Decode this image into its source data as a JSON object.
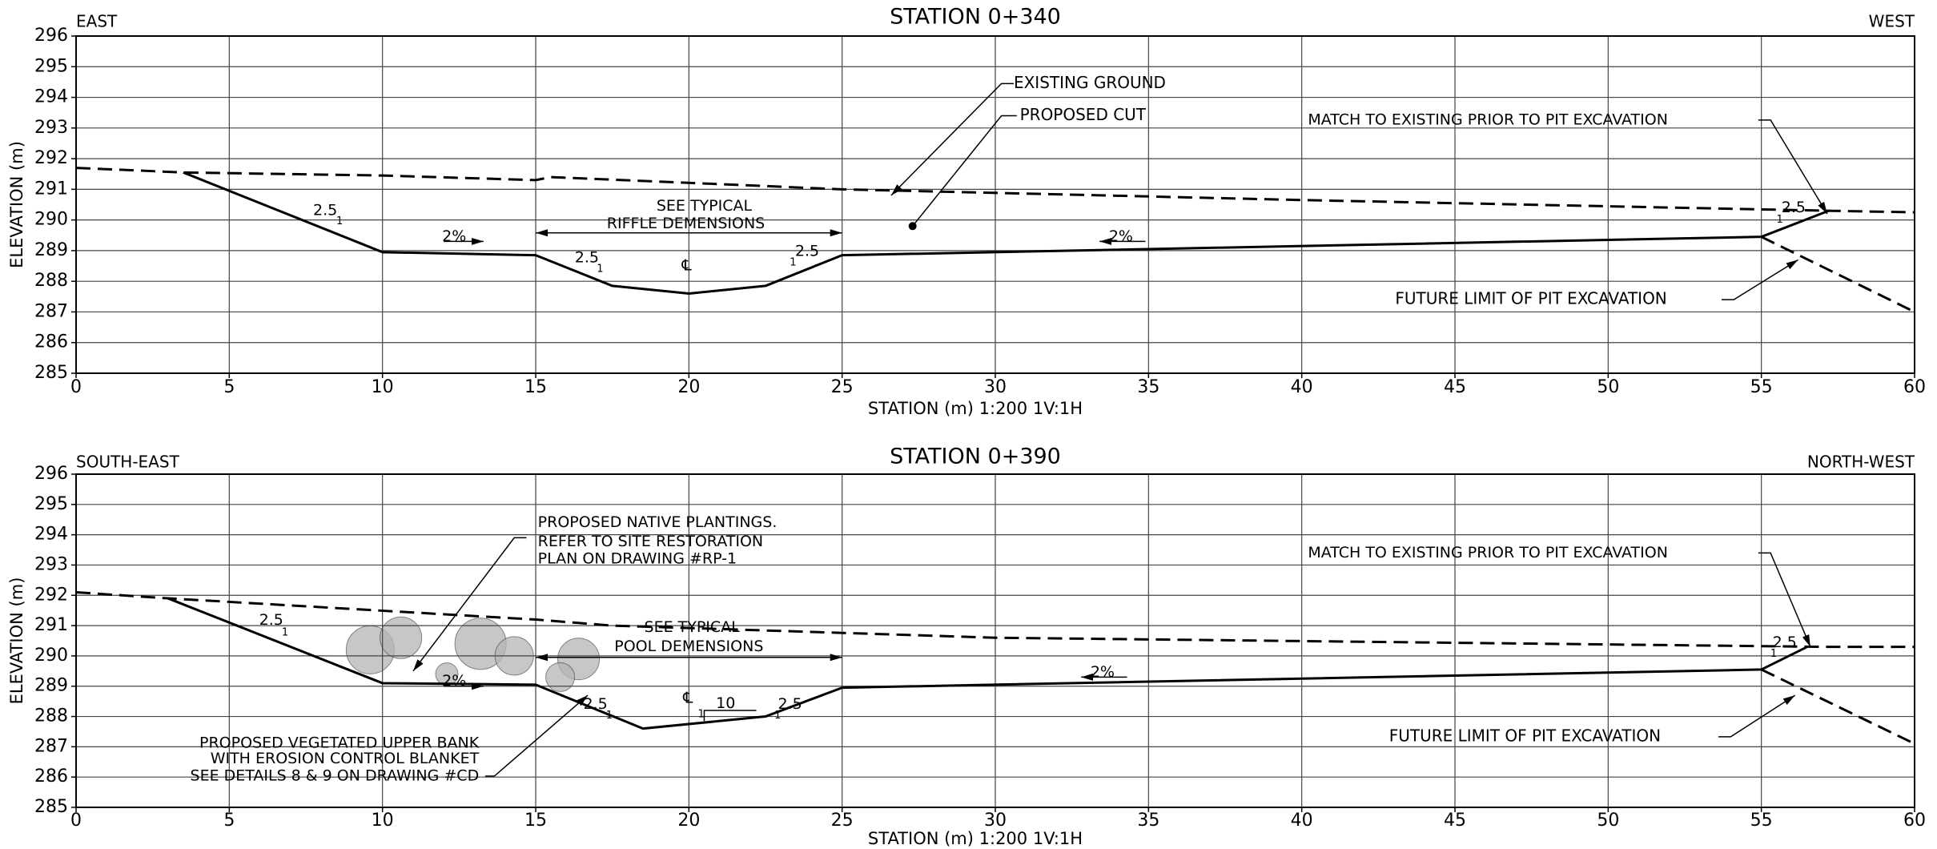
{
  "chart_data": [
    {
      "type": "line",
      "title": "STATION 0+340",
      "left_label": "EAST",
      "right_label": "WEST",
      "x_label": "STATION (m) 1:200 1V:1H",
      "y_label": "ELEVATION (m)",
      "xlim": [
        0,
        60
      ],
      "ylim": [
        285,
        296
      ],
      "xticks": [
        0,
        5,
        10,
        15,
        20,
        25,
        30,
        35,
        40,
        45,
        50,
        55,
        60
      ],
      "yticks": [
        285,
        286,
        287,
        288,
        289,
        290,
        291,
        292,
        293,
        294,
        295,
        296
      ],
      "grid": true,
      "series": [
        {
          "name": "EXISTING GROUND",
          "color": "#000000",
          "dashed": true,
          "x": [
            0,
            3.5,
            10,
            15,
            15.5,
            25,
            40,
            57.2,
            60
          ],
          "values": [
            291.7,
            291.55,
            291.45,
            291.3,
            291.4,
            291.0,
            290.65,
            290.3,
            290.25
          ]
        },
        {
          "name": "PROPOSED CUT",
          "color": "#000000",
          "dashed": false,
          "x": [
            3.5,
            10,
            15,
            17.5,
            20,
            22.5,
            25,
            55,
            57.2
          ],
          "values": [
            291.55,
            288.95,
            288.85,
            287.85,
            287.6,
            287.85,
            288.85,
            289.45,
            290.3
          ]
        },
        {
          "name": "FUTURE LIMIT OF PIT EXCAVATION",
          "color": "#000000",
          "dashed": true,
          "x": [
            55,
            60
          ],
          "values": [
            289.45,
            287.0
          ]
        }
      ],
      "annotations": [
        "SEE TYPICAL",
        "RIFFLE DEMENSIONS",
        "MATCH TO EXISTING PRIOR TO PIT EXCAVATION",
        "2.5",
        "1",
        "2%",
        "2.5",
        "1",
        "℄",
        "2.5",
        "1",
        "2%",
        "2.5",
        "1"
      ]
    },
    {
      "type": "line",
      "title": "STATION 0+390",
      "left_label": "SOUTH-EAST",
      "right_label": "NORTH-WEST",
      "x_label": "STATION (m) 1:200 1V:1H",
      "y_label": "ELEVATION (m)",
      "xlim": [
        0,
        60
      ],
      "ylim": [
        285,
        296
      ],
      "xticks": [
        0,
        5,
        10,
        15,
        20,
        25,
        30,
        35,
        40,
        45,
        50,
        55,
        60
      ],
      "yticks": [
        285,
        286,
        287,
        288,
        289,
        290,
        291,
        292,
        293,
        294,
        295,
        296
      ],
      "grid": true,
      "series": [
        {
          "color": "#000000",
          "dashed": true,
          "x": [
            0,
            3,
            15,
            17.5,
            30,
            57,
            60
          ],
          "values": [
            292.1,
            291.9,
            291.2,
            291.0,
            290.6,
            290.3,
            290.3
          ]
        },
        {
          "color": "#000000",
          "dashed": false,
          "x": [
            3,
            10,
            15,
            18.5,
            22.5,
            25,
            55,
            56.5
          ],
          "values": [
            291.9,
            289.1,
            289.05,
            287.6,
            288.0,
            288.95,
            289.55,
            290.3
          ]
        },
        {
          "name": "FUTURE LIMIT OF PIT EXCAVATION",
          "color": "#000000",
          "dashed": true,
          "x": [
            55,
            60
          ],
          "values": [
            289.55,
            287.1
          ]
        }
      ],
      "annotations": [
        "PROPOSED NATIVE PLANTINGS.",
        "REFER TO SITE RESTORATION",
        "PLAN ON DRAWING #RP-1",
        "SEE TYPICAL",
        "POOL DEMENSIONS",
        "MATCH TO EXISTING PRIOR TO PIT EXCAVATION",
        "PROPOSED VEGETATED UPPER BANK",
        "WITH EROSION CONTROL BLANKET",
        "SEE DETAILS 8 & 9 ON DRAWING #CD",
        "2.5",
        "1",
        "2%",
        "2.5",
        "1",
        "℄",
        "1",
        "10",
        "2.5",
        "1",
        "2%",
        "2.5",
        "1"
      ]
    }
  ]
}
